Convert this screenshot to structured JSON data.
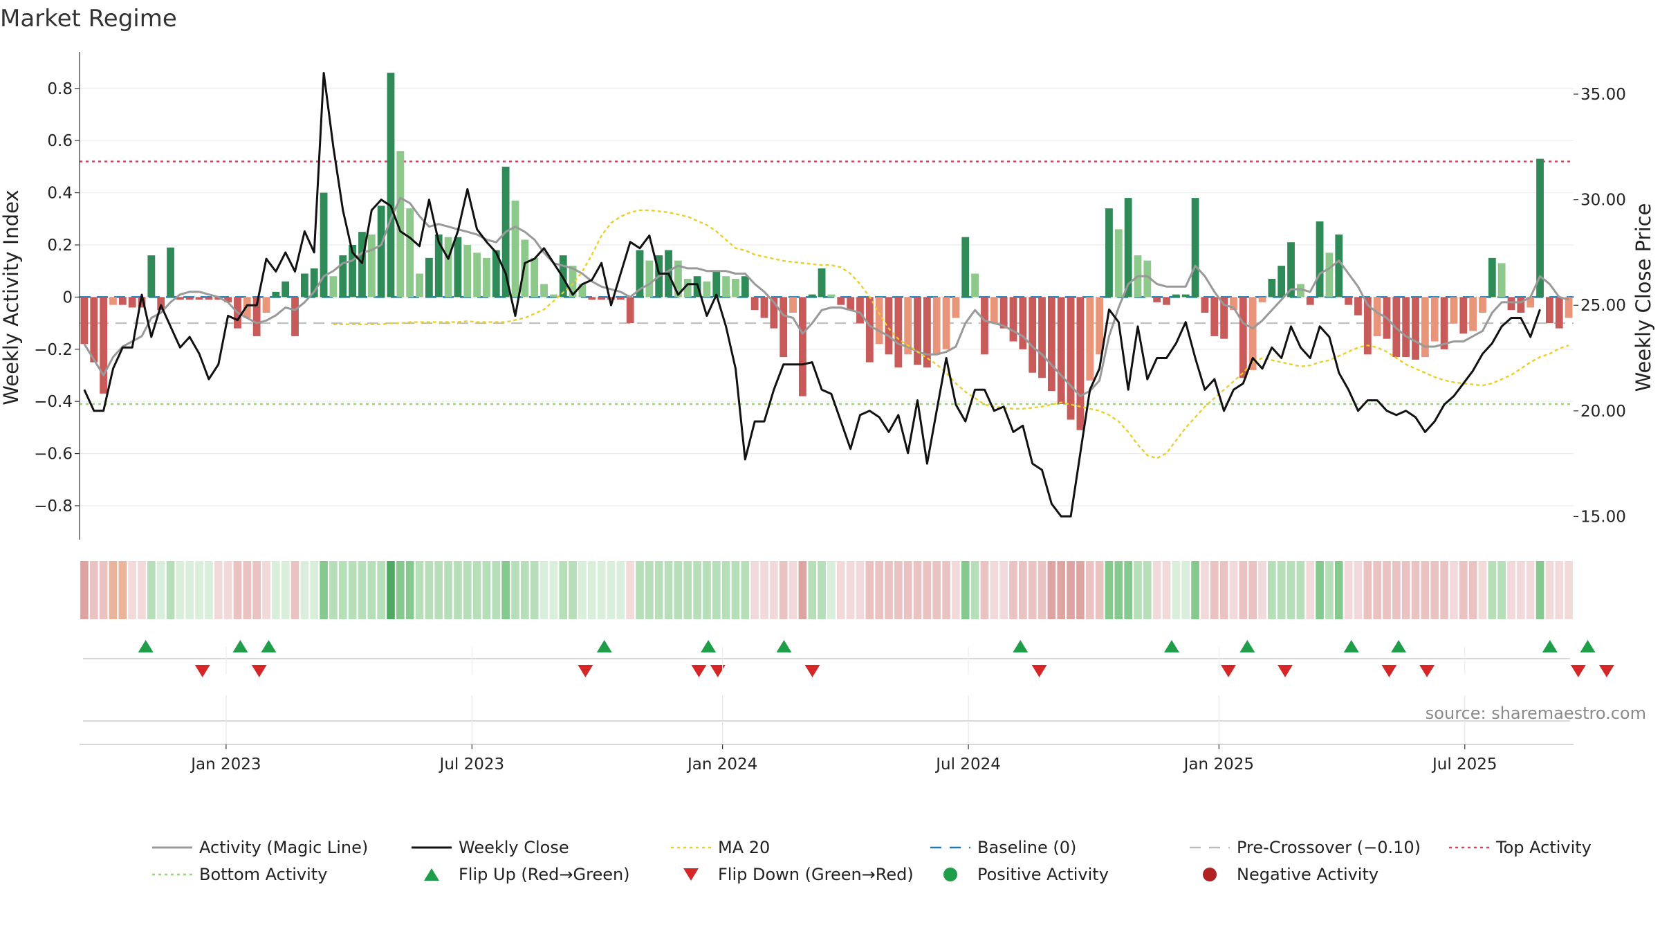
{
  "title": "Market Regime",
  "source": "source: sharemaestro.com",
  "colors": {
    "green_dark": "#2e8b57",
    "green_light": "#8cc98a",
    "red_dark": "#c85a5a",
    "red_light": "#e8957a",
    "magic_line": "#999999",
    "close_line": "#111111",
    "ma20": "#e8cf2a",
    "baseline": "#1f77b4",
    "precross": "#bbbbbb",
    "top": "#d0455c",
    "bottom": "#9ad47a",
    "flip_up": "#1f9e4a",
    "flip_down": "#d62728"
  },
  "chart_data": {
    "type": "bar",
    "title": "Market Regime",
    "ylabel": "Weekly Activity Index",
    "y2label": "Weekly Close Price",
    "ylim": [
      -0.93,
      0.94
    ],
    "y2lim": [
      13.9,
      37.0
    ],
    "yticks": [
      0.8,
      0.6,
      0.4,
      0.2,
      0,
      -0.2,
      -0.4,
      -0.6,
      -0.8
    ],
    "ytick_labels": [
      "0.8",
      "0.6",
      "0.4",
      "0.2",
      "0",
      "−0.2",
      "−0.4",
      "−0.6",
      "−0.8"
    ],
    "y2ticks": [
      35,
      30,
      25,
      20,
      15
    ],
    "y2tick_labels": [
      "35.00",
      "30.00",
      "25.00",
      "20.00",
      "15.00"
    ],
    "x_start_week": -15.5,
    "x_end_week": 142.5,
    "xticks": [
      {
        "label": "Jan 2023",
        "week": 0
      },
      {
        "label": "Jul 2023",
        "week": 26
      },
      {
        "label": "Jan 2024",
        "week": 52.5
      },
      {
        "label": "Jul 2024",
        "week": 78.5
      },
      {
        "label": "Jan 2025",
        "week": 105
      },
      {
        "label": "Jul 2025",
        "week": 131
      }
    ],
    "reference_lines": {
      "baseline": 0,
      "pre_crossover": -0.1,
      "top_activity": 0.52,
      "bottom_activity": -0.41
    },
    "activity": [
      -0.18,
      -0.25,
      -0.37,
      -0.03,
      -0.03,
      -0.04,
      -0.04,
      0.16,
      -0.05,
      0.19,
      -0.01,
      -0.01,
      -0.01,
      -0.01,
      -0.01,
      -0.02,
      -0.12,
      -0.08,
      -0.15,
      -0.06,
      0.02,
      0.06,
      -0.15,
      0.09,
      0.11,
      0.4,
      0.08,
      0.16,
      0.2,
      0.25,
      0.24,
      0.35,
      0.86,
      0.56,
      0.34,
      0.09,
      0.15,
      0.24,
      0.23,
      0.23,
      0.2,
      0.17,
      0.15,
      0.18,
      0.5,
      0.37,
      0.22,
      0.15,
      0.05,
      0.01,
      0.16,
      0.12,
      0.05,
      -0.01,
      -0.01,
      -0.01,
      -0.01,
      -0.1,
      0.18,
      0.14,
      0.16,
      0.18,
      0.14,
      0.07,
      0.08,
      0.06,
      0.1,
      0.08,
      0.07,
      0.08,
      -0.05,
      -0.08,
      -0.12,
      -0.23,
      -0.06,
      -0.38,
      0.01,
      0.11,
      0.01,
      -0.03,
      -0.05,
      -0.1,
      -0.25,
      -0.18,
      -0.22,
      -0.27,
      -0.22,
      -0.26,
      -0.27,
      -0.22,
      -0.2,
      -0.08,
      0.23,
      0.09,
      -0.22,
      -0.1,
      -0.12,
      -0.17,
      -0.2,
      -0.29,
      -0.31,
      -0.36,
      -0.41,
      -0.47,
      -0.51,
      -0.32,
      -0.22,
      0.34,
      0.26,
      0.38,
      0.16,
      0.14,
      -0.02,
      -0.03,
      0.01,
      0.01,
      0.38,
      -0.06,
      -0.15,
      -0.16,
      -0.05,
      -0.31,
      -0.28,
      -0.02,
      0.07,
      0.12,
      0.21,
      0.05,
      -0.03,
      0.29,
      0.17,
      0.24,
      -0.03,
      -0.07,
      -0.22,
      -0.15,
      -0.16,
      -0.23,
      -0.23,
      -0.24,
      -0.23,
      -0.17,
      -0.2,
      -0.1,
      -0.14,
      -0.13,
      -0.06,
      0.15,
      0.13,
      -0.05,
      -0.06,
      -0.04,
      0.53,
      -0.1,
      -0.12,
      -0.08
    ],
    "magic_line": [
      -0.18,
      -0.24,
      -0.3,
      -0.23,
      -0.19,
      -0.17,
      -0.15,
      -0.08,
      -0.06,
      -0.02,
      0.01,
      0.02,
      0.02,
      0.01,
      0.0,
      -0.02,
      -0.06,
      -0.08,
      -0.1,
      -0.09,
      -0.07,
      -0.04,
      -0.05,
      -0.02,
      0.02,
      0.08,
      0.1,
      0.13,
      0.14,
      0.17,
      0.18,
      0.2,
      0.3,
      0.38,
      0.36,
      0.31,
      0.27,
      0.28,
      0.27,
      0.26,
      0.25,
      0.24,
      0.22,
      0.21,
      0.25,
      0.27,
      0.25,
      0.22,
      0.17,
      0.13,
      0.12,
      0.11,
      0.09,
      0.06,
      0.04,
      0.03,
      0.02,
      0.0,
      0.03,
      0.05,
      0.08,
      0.1,
      0.12,
      0.11,
      0.11,
      0.1,
      0.1,
      0.1,
      0.09,
      0.09,
      0.05,
      0.02,
      -0.02,
      -0.07,
      -0.08,
      -0.14,
      -0.1,
      -0.05,
      -0.04,
      -0.04,
      -0.05,
      -0.06,
      -0.11,
      -0.13,
      -0.15,
      -0.18,
      -0.19,
      -0.21,
      -0.22,
      -0.22,
      -0.21,
      -0.19,
      -0.1,
      -0.05,
      -0.09,
      -0.1,
      -0.11,
      -0.13,
      -0.15,
      -0.19,
      -0.22,
      -0.26,
      -0.3,
      -0.34,
      -0.38,
      -0.36,
      -0.32,
      -0.15,
      -0.04,
      0.05,
      0.08,
      0.08,
      0.05,
      0.04,
      0.04,
      0.04,
      0.12,
      0.08,
      0.02,
      -0.03,
      -0.04,
      -0.1,
      -0.12,
      -0.09,
      -0.05,
      -0.01,
      0.03,
      0.03,
      0.02,
      0.09,
      0.11,
      0.14,
      0.09,
      0.04,
      -0.03,
      -0.06,
      -0.08,
      -0.12,
      -0.15,
      -0.17,
      -0.19,
      -0.19,
      -0.18,
      -0.17,
      -0.17,
      -0.15,
      -0.13,
      -0.06,
      -0.02,
      -0.02,
      -0.02,
      0.0,
      0.08,
      0.05,
      0.0,
      -0.01
    ],
    "weekly_close": [
      21.0,
      20.0,
      20.0,
      22.0,
      23.0,
      23.0,
      25.5,
      23.5,
      25.0,
      24.0,
      23.0,
      23.5,
      22.7,
      21.5,
      22.2,
      24.5,
      24.3,
      25.0,
      25.0,
      27.2,
      26.6,
      27.5,
      26.6,
      28.5,
      27.5,
      36.0,
      32.5,
      29.5,
      27.5,
      27.0,
      29.5,
      30.0,
      29.7,
      28.5,
      28.2,
      27.8,
      30.0,
      28.0,
      27.2,
      28.5,
      30.5,
      28.6,
      28.0,
      27.5,
      26.5,
      24.5,
      27.0,
      27.2,
      27.7,
      27.0,
      26.3,
      25.5,
      26.0,
      26.2,
      27.0,
      25.0,
      26.5,
      28.0,
      27.7,
      28.3,
      26.5,
      26.5,
      25.5,
      26.0,
      26.0,
      24.5,
      25.5,
      24.0,
      22.0,
      17.7,
      19.5,
      19.5,
      21.0,
      22.2,
      22.2,
      22.2,
      22.3,
      21.0,
      20.8,
      19.5,
      18.2,
      19.8,
      20.0,
      19.7,
      19.0,
      19.8,
      18.0,
      20.5,
      17.5,
      20.0,
      22.5,
      20.3,
      19.5,
      21.0,
      21.0,
      20.0,
      20.2,
      19.0,
      19.3,
      17.5,
      17.2,
      15.6,
      15.0,
      15.0,
      18.0,
      21.0,
      22.0,
      24.8,
      24.2,
      21.0,
      24.0,
      21.5,
      22.5,
      22.5,
      23.2,
      24.2,
      22.5,
      21.0,
      21.5,
      20.0,
      21.0,
      21.3,
      22.5,
      22.0,
      23.0,
      22.5,
      24.0,
      23.0,
      22.5,
      24.0,
      23.5,
      21.8,
      21.0,
      20.0,
      20.5,
      20.5,
      20.0,
      19.8,
      20.0,
      19.7,
      19.0,
      19.5,
      20.3,
      20.7,
      21.3,
      21.9,
      22.7,
      23.2,
      24.0,
      24.4,
      24.4,
      23.5,
      24.8
    ],
    "ma20": [
      24.1,
      24.1,
      24.1,
      24.1,
      24.1,
      24.1,
      24.15,
      24.15,
      24.2,
      24.2,
      24.2,
      24.2,
      24.2,
      24.2,
      24.25,
      24.2,
      24.2,
      24.2,
      24.2,
      24.3,
      24.4,
      24.6,
      24.8,
      25.2,
      25.6,
      26.0,
      26.6,
      27.4,
      28.3,
      28.9,
      29.2,
      29.4,
      29.5,
      29.5,
      29.45,
      29.4,
      29.3,
      29.2,
      29.0,
      28.8,
      28.5,
      28.1,
      27.7,
      27.6,
      27.4,
      27.3,
      27.2,
      27.1,
      27.05,
      27.0,
      26.95,
      26.9,
      26.9,
      26.8,
      26.5,
      26.0,
      25.4,
      24.6,
      23.9,
      23.4,
      23.1,
      22.8,
      22.5,
      22.2,
      21.8,
      21.3,
      20.9,
      20.6,
      20.3,
      20.2,
      20.15,
      20.1,
      20.1,
      20.15,
      20.2,
      20.3,
      20.4,
      20.3,
      20.2,
      20.1,
      20.0,
      19.8,
      19.5,
      19.0,
      18.4,
      17.9,
      17.75,
      18.0,
      18.6,
      19.2,
      19.7,
      20.2,
      20.6,
      21.0,
      21.4,
      21.8,
      22.3,
      22.5,
      22.4,
      22.3,
      22.2,
      22.1,
      22.15,
      22.3,
      22.4,
      22.6,
      22.8,
      23.0,
      23.1,
      23.0,
      22.8,
      22.5,
      22.2,
      22.0,
      21.8,
      21.6,
      21.45,
      21.35,
      21.3,
      21.25,
      21.2,
      21.3,
      21.5,
      21.7,
      22.0,
      22.3,
      22.55,
      22.7,
      22.95,
      23.1
    ],
    "regime_strip": [
      "R2",
      "R1",
      "R1",
      "O",
      "O",
      "R0",
      "R0",
      "G1",
      "G0",
      "G1",
      "G0",
      "G0",
      "G0",
      "G0",
      "R0",
      "R0",
      "R1",
      "R1",
      "R1",
      "R0",
      "G0",
      "G0",
      "R1",
      "G0",
      "G0",
      "G2",
      "G1",
      "G1",
      "G1",
      "G1",
      "G1",
      "G1",
      "G3",
      "G2",
      "G2",
      "G1",
      "G1",
      "G1",
      "G1",
      "G1",
      "G1",
      "G1",
      "G1",
      "G1",
      "G2",
      "G1",
      "G1",
      "G1",
      "G0",
      "G0",
      "G1",
      "G1",
      "G0",
      "G0",
      "G0",
      "G0",
      "G0",
      "R0",
      "G1",
      "G1",
      "G1",
      "G1",
      "G1",
      "G1",
      "G1",
      "G1",
      "G1",
      "G1",
      "G1",
      "G1",
      "R0",
      "R0",
      "R0",
      "R1",
      "R0",
      "R2",
      "G1",
      "G1",
      "G0",
      "R0",
      "R0",
      "R0",
      "R1",
      "R1",
      "R1",
      "R1",
      "R1",
      "R1",
      "R1",
      "R1",
      "R1",
      "R0",
      "G2",
      "G1",
      "R1",
      "R0",
      "R0",
      "R1",
      "R1",
      "R1",
      "R1",
      "R2",
      "R2",
      "R2",
      "R2",
      "R1",
      "R1",
      "G2",
      "G2",
      "G2",
      "G1",
      "G1",
      "R0",
      "R0",
      "G0",
      "G0",
      "G2",
      "R0",
      "R1",
      "R1",
      "R0",
      "R1",
      "R1",
      "R0",
      "G1",
      "G1",
      "G1",
      "G1",
      "R0",
      "G2",
      "G1",
      "G2",
      "R0",
      "R0",
      "R1",
      "R1",
      "R1",
      "R1",
      "R1",
      "R1",
      "R1",
      "R1",
      "R1",
      "R0",
      "R1",
      "R1",
      "R0",
      "G1",
      "G1",
      "R0",
      "R0",
      "R0",
      "G2",
      "R0",
      "R0",
      "R0"
    ],
    "flip_up_weeks": [
      -8.5,
      1.5,
      4.5,
      40,
      51,
      59,
      84,
      100,
      108,
      119,
      124,
      140,
      144
    ],
    "flip_down_weeks": [
      -2.5,
      3.5,
      38,
      50,
      52,
      62,
      86,
      106,
      112,
      123,
      127,
      143,
      146
    ]
  },
  "legend": [
    {
      "label": "Activity (Magic Line)",
      "kind": "solid",
      "color": "#999999"
    },
    {
      "label": "Weekly Close",
      "kind": "solid",
      "color": "#111111"
    },
    {
      "label": "MA 20",
      "kind": "dotted",
      "color": "#e8cf2a"
    },
    {
      "label": "Baseline (0)",
      "kind": "dashed",
      "color": "#1f77b4"
    },
    {
      "label": "Pre-Crossover (−0.10)",
      "kind": "dashed",
      "color": "#bbbbbb"
    },
    {
      "label": "Top Activity",
      "kind": "dotted",
      "color": "#d0455c"
    },
    {
      "label": "Bottom Activity",
      "kind": "dotted",
      "color": "#9ad47a"
    },
    {
      "label": "Flip Up (Red→Green)",
      "kind": "tri-up",
      "color": "#1f9e4a"
    },
    {
      "label": "Flip Down (Green→Red)",
      "kind": "tri-down",
      "color": "#d62728"
    },
    {
      "label": "Positive Activity",
      "kind": "dot",
      "color": "#1f9e4a"
    },
    {
      "label": "Negative Activity",
      "kind": "dot",
      "color": "#b22222"
    }
  ]
}
